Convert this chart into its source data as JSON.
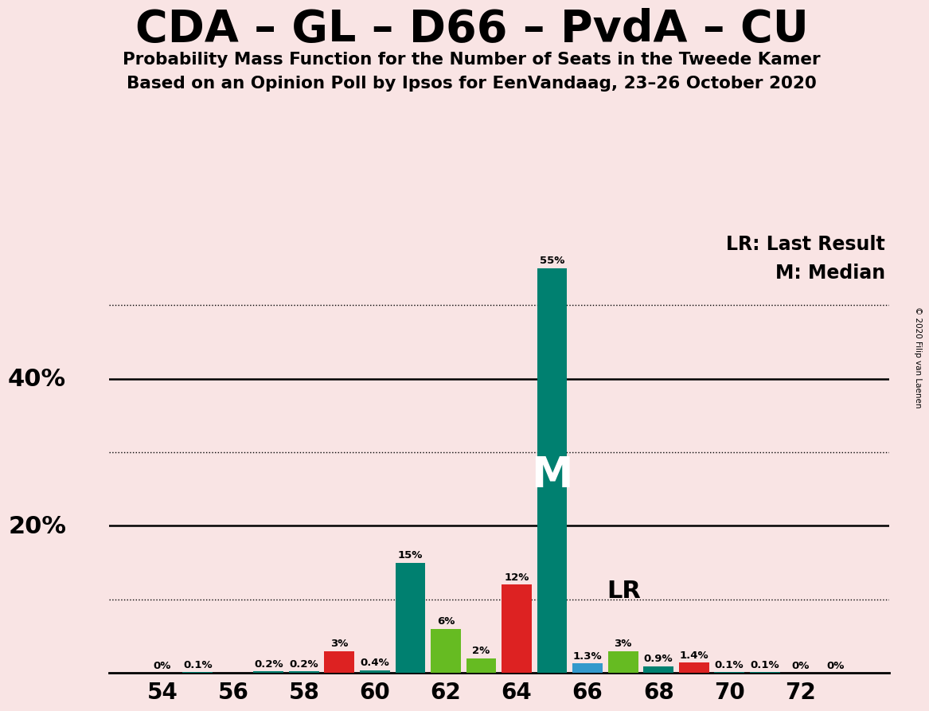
{
  "title": "CDA – GL – D66 – PvdA – CU",
  "subtitle1": "Probability Mass Function for the Number of Seats in the Tweede Kamer",
  "subtitle2": "Based on an Opinion Poll by Ipsos for EenVandaag, 23–26 October 2020",
  "copyright": "© 2020 Filip van Laenen",
  "legend_lr": "LR: Last Result",
  "legend_m": "M: Median",
  "background_color": "#f9e4e4",
  "bar_data": [
    {
      "seat": 54,
      "color": "teal",
      "value": 0.0,
      "label": "0%"
    },
    {
      "seat": 55,
      "color": "teal",
      "value": 0.1,
      "label": "0.1%"
    },
    {
      "seat": 56,
      "color": "teal",
      "value": 0.0,
      "label": ""
    },
    {
      "seat": 57,
      "color": "teal",
      "value": 0.2,
      "label": "0.2%"
    },
    {
      "seat": 58,
      "color": "teal",
      "value": 0.2,
      "label": "0.2%"
    },
    {
      "seat": 59,
      "color": "red",
      "value": 3.0,
      "label": "3%"
    },
    {
      "seat": 60,
      "color": "teal",
      "value": 0.4,
      "label": "0.4%"
    },
    {
      "seat": 61,
      "color": "teal",
      "value": 15.0,
      "label": "15%"
    },
    {
      "seat": 62,
      "color": "green",
      "value": 6.0,
      "label": "6%"
    },
    {
      "seat": 63,
      "color": "green",
      "value": 2.0,
      "label": "2%"
    },
    {
      "seat": 64,
      "color": "red",
      "value": 12.0,
      "label": "12%"
    },
    {
      "seat": 65,
      "color": "teal",
      "value": 55.0,
      "label": "55%"
    },
    {
      "seat": 66,
      "color": "blue",
      "value": 1.3,
      "label": "1.3%"
    },
    {
      "seat": 67,
      "color": "green",
      "value": 3.0,
      "label": "3%"
    },
    {
      "seat": 68,
      "color": "teal",
      "value": 0.9,
      "label": "0.9%"
    },
    {
      "seat": 69,
      "color": "red",
      "value": 1.4,
      "label": "1.4%"
    },
    {
      "seat": 70,
      "color": "teal",
      "value": 0.1,
      "label": "0.1%"
    },
    {
      "seat": 71,
      "color": "teal",
      "value": 0.1,
      "label": "0.1%"
    },
    {
      "seat": 72,
      "color": "teal",
      "value": 0.0,
      "label": "0%"
    },
    {
      "seat": 73,
      "color": "teal",
      "value": 0.0,
      "label": "0%"
    }
  ],
  "teal_color": "#008070",
  "red_color": "#dd2222",
  "green_color": "#66bb22",
  "blue_color": "#3399cc",
  "median_seat": 65,
  "lr_seat": 66,
  "solid_yticks": [
    20,
    40
  ],
  "dotted_yticks": [
    10,
    30,
    50
  ],
  "xlabel_seats": [
    54,
    56,
    58,
    60,
    62,
    64,
    66,
    68,
    70,
    72
  ],
  "bar_width": 0.85,
  "xlim": [
    52.5,
    74.5
  ],
  "ylim": [
    0,
    60
  ]
}
